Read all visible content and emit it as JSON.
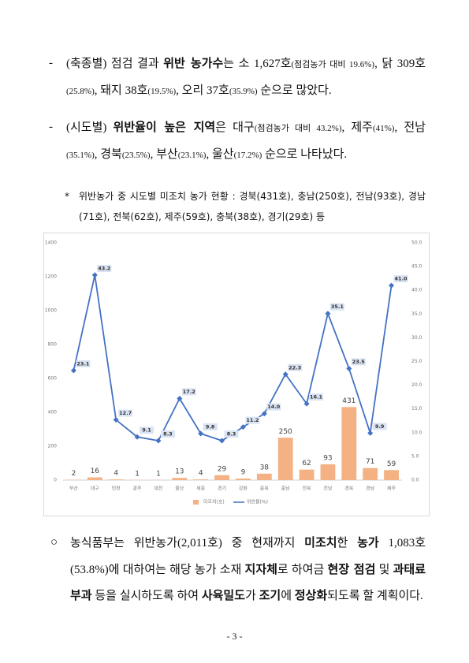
{
  "paragraphs": [
    {
      "marker": "-",
      "runs": [
        {
          "text": "(축종별) 점검 결과 "
        },
        {
          "text": "위반 농가수",
          "bold": true
        },
        {
          "text": "는 소 1,627호"
        },
        {
          "text": "(점검농가 대비 19.6%)",
          "small": true
        },
        {
          "text": ", 닭 309호"
        },
        {
          "text": "(25.8%)",
          "small": true
        },
        {
          "text": ", 돼지 38호"
        },
        {
          "text": "(19.5%)",
          "small": true
        },
        {
          "text": ", 오리 37호"
        },
        {
          "text": "(35.9%)",
          "small": true
        },
        {
          "text": " 순으로 많았다."
        }
      ]
    },
    {
      "marker": "-",
      "runs": [
        {
          "text": "(시도별) "
        },
        {
          "text": "위반율이 높은 지역",
          "bold": true
        },
        {
          "text": "은 대구"
        },
        {
          "text": "(점검농가 대비 43.2%)",
          "small": true
        },
        {
          "text": ", 제주"
        },
        {
          "text": "(41%)",
          "small": true
        },
        {
          "text": ", 전남"
        },
        {
          "text": "(35.1%)",
          "small": true
        },
        {
          "text": ", 경북"
        },
        {
          "text": "(23.5%)",
          "small": true
        },
        {
          "text": ", 부산"
        },
        {
          "text": "(23.1%)",
          "small": true
        },
        {
          "text": ", 울산"
        },
        {
          "text": "(17.2%)",
          "small": true
        },
        {
          "text": " 순으로 나타났다."
        }
      ]
    }
  ],
  "note": {
    "marker": "*",
    "text": "위반농가 중 시도별 미조치 농가 현황 : 경북(431호), 충남(250호), 전남(93호), 경남(71호), 전북(62호), 제주(59호), 충북(38호), 경기(29호) 등"
  },
  "chart_data": {
    "type": "bar-line",
    "categories": [
      "부산",
      "대구",
      "인천",
      "광주",
      "대전",
      "울산",
      "세종",
      "경기",
      "강원",
      "충북",
      "충남",
      "전북",
      "전남",
      "경북",
      "경남",
      "제주"
    ],
    "series": [
      {
        "name": "미조치(호)",
        "type": "bar",
        "color": "#f4b183",
        "values": [
          2,
          16,
          4,
          1,
          1,
          13,
          4,
          29,
          9,
          38,
          250,
          62,
          93,
          431,
          71,
          59
        ]
      },
      {
        "name": "위반율(%)",
        "type": "line",
        "axis": "y2",
        "color": "#4472c4",
        "values": [
          23.1,
          43.2,
          12.7,
          9.1,
          8.3,
          17.2,
          9.8,
          8.3,
          11.2,
          14.0,
          22.3,
          16.1,
          35.1,
          23.5,
          9.9,
          41.0
        ],
        "value_labels": [
          "23.1",
          "43.2",
          "12.7",
          "9.1",
          "8.3",
          "17.2",
          "9.8",
          "8.3",
          "11.2",
          "14.0",
          "22.3",
          "16.1",
          "35.1",
          "23.5",
          "9.9",
          "41.0"
        ]
      }
    ],
    "ylim": [
      0,
      1400
    ],
    "yticks": [
      0,
      200,
      400,
      600,
      800,
      1000,
      1200,
      1400
    ],
    "y2lim": [
      0,
      50
    ],
    "y2ticks": [
      {
        "value": 0,
        "label": "0.0"
      },
      {
        "value": 5,
        "label": "5.0"
      },
      {
        "value": 10,
        "label": "10.0"
      },
      {
        "value": 15,
        "label": "15.0"
      },
      {
        "value": 20,
        "label": "20.0"
      },
      {
        "value": 25,
        "label": "25.0"
      },
      {
        "value": 30,
        "label": "30.0"
      },
      {
        "value": 35,
        "label": "35.0"
      },
      {
        "value": 40,
        "label": "40.0"
      },
      {
        "value": 45,
        "label": "45.0"
      },
      {
        "value": 50,
        "label": "50.0"
      }
    ],
    "legend": "bottom"
  },
  "closing": {
    "marker": "○",
    "runs": [
      {
        "text": "농식품부는 위반농가(2,011호) 중 현재까지 "
      },
      {
        "text": "미조치",
        "bold": true
      },
      {
        "text": "한 "
      },
      {
        "text": "농가",
        "bold": true
      },
      {
        "text": " 1,083호(53.8%)에 대하여는 해당 농가 소재 "
      },
      {
        "text": "지자체",
        "bold": true
      },
      {
        "text": "로 하여금 "
      },
      {
        "text": "현장 점검",
        "bold": true
      },
      {
        "text": " 및 "
      },
      {
        "text": "과태료 부과",
        "bold": true
      },
      {
        "text": " 등을 실시하도록 하여 "
      },
      {
        "text": "사육밀도",
        "bold": true
      },
      {
        "text": "가 "
      },
      {
        "text": "조기",
        "bold": true
      },
      {
        "text": "에 "
      },
      {
        "text": "정상화",
        "bold": true
      },
      {
        "text": "되도록 할 계획이다."
      }
    ]
  },
  "page_number": "- 3 -"
}
